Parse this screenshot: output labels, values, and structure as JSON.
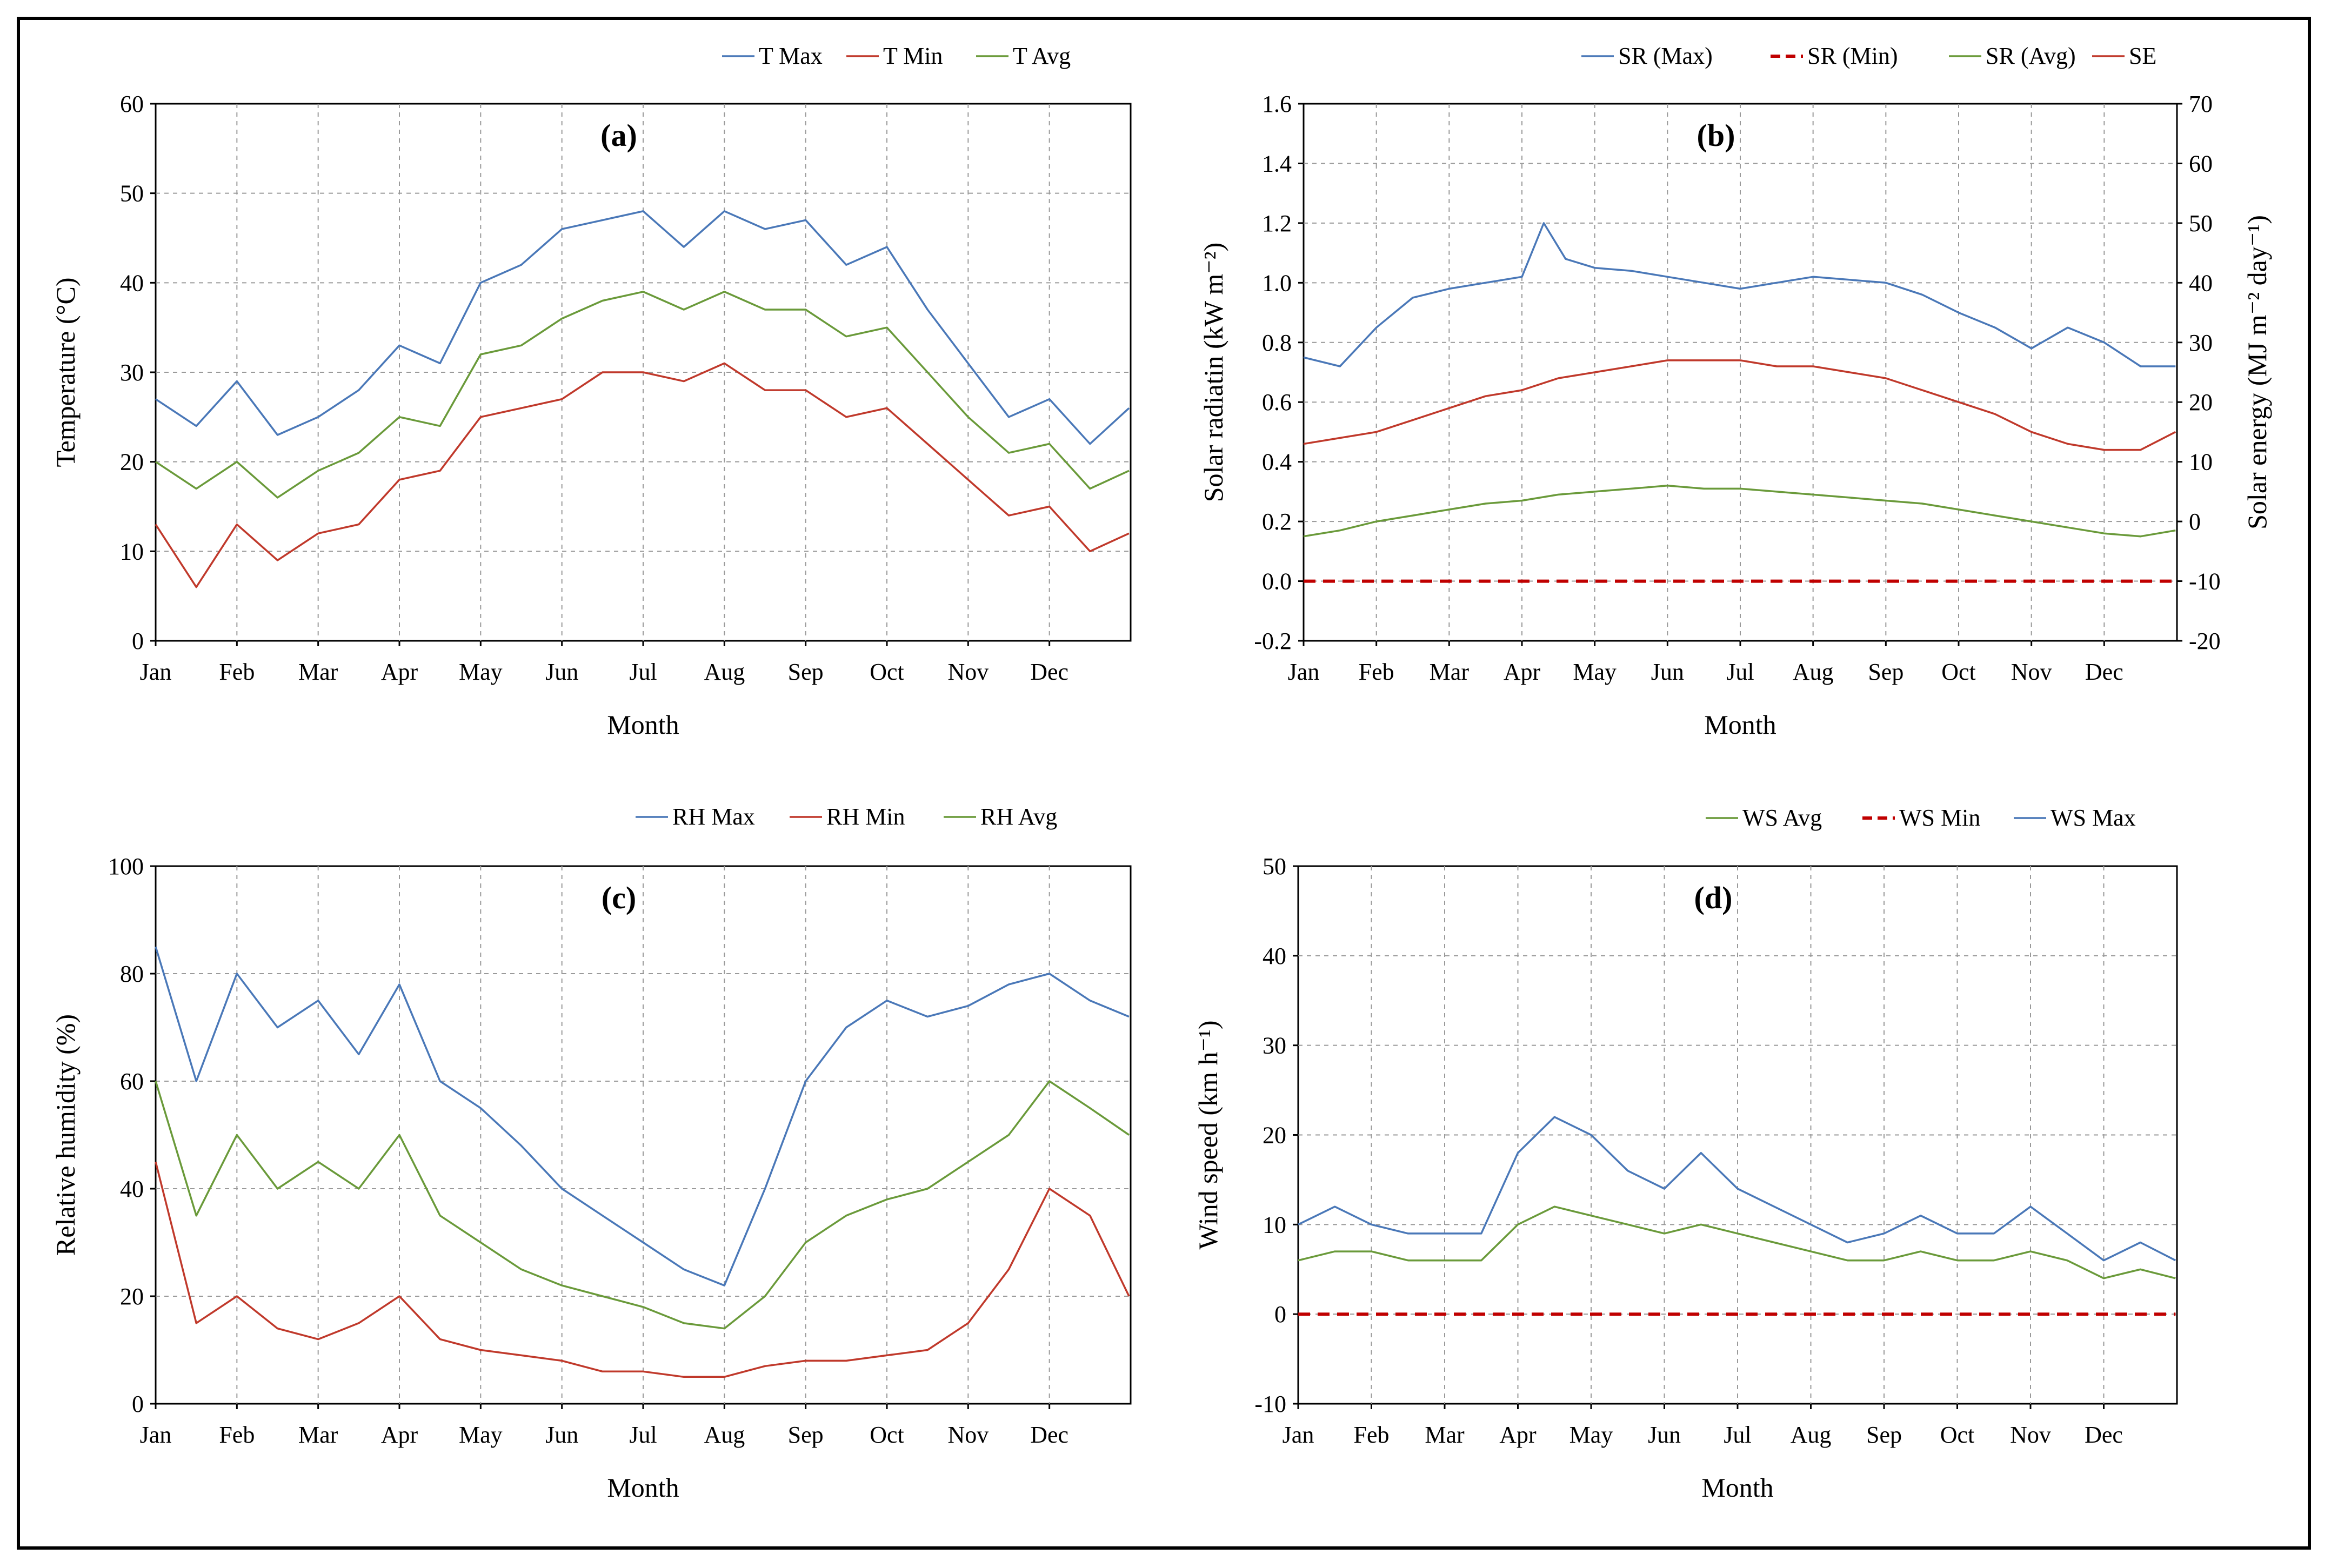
{
  "chart_data": [
    {
      "type": "line",
      "panel_label": "(a)",
      "xlabel": "Month",
      "ylabel": "Temperature (°C)",
      "ylim": [
        0,
        60
      ],
      "yticks": [
        0,
        10,
        20,
        30,
        40,
        50,
        60
      ],
      "categories": [
        "Jan",
        "Feb",
        "Mar",
        "Apr",
        "May",
        "Jun",
        "Jul",
        "Aug",
        "Sep",
        "Oct",
        "Nov",
        "Dec"
      ],
      "grid": true,
      "legend_position": "top-right",
      "series": [
        {
          "name": "T Max",
          "color": "#4a78b8",
          "dash": "solid",
          "x": [
            0,
            0.5,
            1,
            1.5,
            2,
            2.5,
            3,
            3.5,
            4,
            4.5,
            5,
            5.5,
            6,
            6.5,
            7,
            7.5,
            8,
            8.5,
            9,
            9.5,
            10,
            10.5,
            11,
            11.5,
            11.98
          ],
          "y": [
            27,
            24,
            29,
            23,
            25,
            28,
            33,
            31,
            40,
            42,
            46,
            47,
            48,
            44,
            48,
            46,
            47,
            42,
            44,
            37,
            31,
            25,
            27,
            22,
            26
          ]
        },
        {
          "name": "T Min",
          "color": "#c0392b",
          "dash": "solid",
          "x": [
            0,
            0.5,
            1,
            1.5,
            2,
            2.5,
            3,
            3.5,
            4,
            4.5,
            5,
            5.5,
            6,
            6.5,
            7,
            7.5,
            8,
            8.5,
            9,
            9.5,
            10,
            10.5,
            11,
            11.5,
            11.98
          ],
          "y": [
            13,
            6,
            13,
            9,
            12,
            13,
            18,
            19,
            25,
            26,
            27,
            30,
            30,
            29,
            31,
            28,
            28,
            25,
            26,
            22,
            18,
            14,
            15,
            10,
            12
          ]
        },
        {
          "name": "T Avg",
          "color": "#6a9a3a",
          "dash": "solid",
          "x": [
            0,
            0.5,
            1,
            1.5,
            2,
            2.5,
            3,
            3.5,
            4,
            4.5,
            5,
            5.5,
            6,
            6.5,
            7,
            7.5,
            8,
            8.5,
            9,
            9.5,
            10,
            10.5,
            11,
            11.5,
            11.98
          ],
          "y": [
            20,
            17,
            20,
            16,
            19,
            21,
            25,
            24,
            32,
            33,
            36,
            38,
            39,
            37,
            39,
            37,
            37,
            34,
            35,
            30,
            25,
            21,
            22,
            17,
            19
          ]
        }
      ]
    },
    {
      "type": "line",
      "panel_label": "(b)",
      "xlabel": "Month",
      "ylabel": "Solar radiatin (kW m⁻²)",
      "ylabel_right": "Solar energy (MJ m⁻² day⁻¹)",
      "ylim": [
        -0.2,
        1.6
      ],
      "ylim_right": [
        -20,
        70
      ],
      "yticks": [
        "-0.2",
        "0.0",
        "0.2",
        "0.4",
        "0.6",
        "0.8",
        "1.0",
        "1.2",
        "1.4",
        "1.6"
      ],
      "yticks_right": [
        -20,
        -10,
        0,
        10,
        20,
        30,
        40,
        50,
        60,
        70
      ],
      "categories": [
        "Jan",
        "Feb",
        "Mar",
        "Apr",
        "May",
        "Jun",
        "Jul",
        "Aug",
        "Sep",
        "Oct",
        "Nov",
        "Dec"
      ],
      "grid": true,
      "legend_position": "top-right",
      "series": [
        {
          "name": "SR (Max)",
          "color": "#4a78b8",
          "dash": "solid",
          "axis": "left",
          "x": [
            0,
            0.5,
            1,
            1.5,
            2,
            2.5,
            3,
            3.3,
            3.6,
            4,
            4.5,
            5,
            5.5,
            6,
            6.5,
            7,
            7.5,
            8,
            8.5,
            9,
            9.5,
            10,
            10.5,
            11,
            11.5,
            11.98
          ],
          "y": [
            0.75,
            0.72,
            0.85,
            0.95,
            0.98,
            1.0,
            1.02,
            1.2,
            1.08,
            1.05,
            1.04,
            1.02,
            1.0,
            0.98,
            1.0,
            1.02,
            1.01,
            1.0,
            0.96,
            0.9,
            0.85,
            0.78,
            0.85,
            0.8,
            0.72,
            0.72
          ]
        },
        {
          "name": "SR (Min)",
          "color": "#c00000",
          "dash": "dashed",
          "axis": "left",
          "x": [
            0,
            11.98
          ],
          "y": [
            0.0,
            0.0
          ]
        },
        {
          "name": "SR (Avg)",
          "color": "#6a9a3a",
          "dash": "solid",
          "axis": "left",
          "x": [
            0,
            0.5,
            1,
            1.5,
            2,
            2.5,
            3,
            3.5,
            4,
            4.5,
            5,
            5.5,
            6,
            6.5,
            7,
            7.5,
            8,
            8.5,
            9,
            9.5,
            10,
            10.5,
            11,
            11.5,
            11.98
          ],
          "y": [
            0.15,
            0.17,
            0.2,
            0.22,
            0.24,
            0.26,
            0.27,
            0.29,
            0.3,
            0.31,
            0.32,
            0.31,
            0.31,
            0.3,
            0.29,
            0.28,
            0.27,
            0.26,
            0.24,
            0.22,
            0.2,
            0.18,
            0.16,
            0.15,
            0.17
          ]
        },
        {
          "name": "SE",
          "color": "#c0392b",
          "dash": "solid",
          "axis": "right",
          "x": [
            0,
            0.5,
            1,
            1.5,
            2,
            2.5,
            3,
            3.5,
            4,
            4.5,
            5,
            5.5,
            6,
            6.5,
            7,
            7.5,
            8,
            8.5,
            9,
            9.5,
            10,
            10.5,
            11,
            11.5,
            11.98
          ],
          "y": [
            13,
            14,
            15,
            17,
            19,
            21,
            22,
            24,
            25,
            26,
            27,
            27,
            27,
            26,
            26,
            25,
            24,
            22,
            20,
            18,
            15,
            13,
            12,
            12,
            15
          ]
        }
      ]
    },
    {
      "type": "line",
      "panel_label": "(c)",
      "xlabel": "Month",
      "ylabel": "Relative humidity (%)",
      "ylim": [
        0,
        100
      ],
      "yticks": [
        0,
        20,
        40,
        60,
        80,
        100
      ],
      "categories": [
        "Jan",
        "Feb",
        "Mar",
        "Apr",
        "May",
        "Jun",
        "Jul",
        "Aug",
        "Sep",
        "Oct",
        "Nov",
        "Dec"
      ],
      "grid": true,
      "legend_position": "top-right",
      "series": [
        {
          "name": "RH Max",
          "color": "#4a78b8",
          "dash": "solid",
          "x": [
            0,
            0.5,
            1,
            1.5,
            2,
            2.5,
            3,
            3.5,
            4,
            4.5,
            5,
            5.5,
            6,
            6.5,
            7,
            7.5,
            8,
            8.5,
            9,
            9.5,
            10,
            10.5,
            11,
            11.5,
            11.98
          ],
          "y": [
            85,
            60,
            80,
            70,
            75,
            65,
            78,
            60,
            55,
            48,
            40,
            35,
            30,
            25,
            22,
            40,
            60,
            70,
            75,
            72,
            74,
            78,
            80,
            75,
            72
          ]
        },
        {
          "name": "RH Min",
          "color": "#c0392b",
          "dash": "solid",
          "x": [
            0,
            0.5,
            1,
            1.5,
            2,
            2.5,
            3,
            3.5,
            4,
            4.5,
            5,
            5.5,
            6,
            6.5,
            7,
            7.5,
            8,
            8.5,
            9,
            9.5,
            10,
            10.5,
            11,
            11.5,
            11.98
          ],
          "y": [
            45,
            15,
            20,
            14,
            12,
            15,
            20,
            12,
            10,
            9,
            8,
            6,
            6,
            5,
            5,
            7,
            8,
            8,
            9,
            10,
            15,
            25,
            40,
            35,
            20
          ]
        },
        {
          "name": "RH Avg",
          "color": "#6a9a3a",
          "dash": "solid",
          "x": [
            0,
            0.5,
            1,
            1.5,
            2,
            2.5,
            3,
            3.5,
            4,
            4.5,
            5,
            5.5,
            6,
            6.5,
            7,
            7.5,
            8,
            8.5,
            9,
            9.5,
            10,
            10.5,
            11,
            11.5,
            11.98
          ],
          "y": [
            60,
            35,
            50,
            40,
            45,
            40,
            50,
            35,
            30,
            25,
            22,
            20,
            18,
            15,
            14,
            20,
            30,
            35,
            38,
            40,
            45,
            50,
            60,
            55,
            50
          ]
        }
      ]
    },
    {
      "type": "line",
      "panel_label": "(d)",
      "xlabel": "Month",
      "ylabel": "Wind speed (km h⁻¹)",
      "ylim": [
        -10,
        50
      ],
      "yticks": [
        -10,
        0,
        10,
        20,
        30,
        40,
        50
      ],
      "categories": [
        "Jan",
        "Feb",
        "Mar",
        "Apr",
        "May",
        "Jun",
        "Jul",
        "Aug",
        "Sep",
        "Oct",
        "Nov",
        "Dec"
      ],
      "grid": true,
      "legend_position": "top-right",
      "series": [
        {
          "name": "WS Avg",
          "color": "#6a9a3a",
          "dash": "solid",
          "x": [
            0,
            0.5,
            1,
            1.5,
            2,
            2.5,
            3,
            3.5,
            4,
            4.5,
            5,
            5.5,
            6,
            6.5,
            7,
            7.5,
            8,
            8.5,
            9,
            9.5,
            10,
            10.5,
            11,
            11.5,
            11.98
          ],
          "y": [
            6,
            7,
            7,
            6,
            6,
            6,
            10,
            12,
            11,
            10,
            9,
            10,
            9,
            8,
            7,
            6,
            6,
            7,
            6,
            6,
            7,
            6,
            4,
            5,
            4
          ]
        },
        {
          "name": "WS Min",
          "color": "#c00000",
          "dash": "dashed",
          "x": [
            0,
            11.98
          ],
          "y": [
            0,
            0
          ]
        },
        {
          "name": "WS Max",
          "color": "#4a78b8",
          "dash": "solid",
          "x": [
            0,
            0.5,
            1,
            1.5,
            2,
            2.5,
            3,
            3.5,
            4,
            4.5,
            5,
            5.5,
            6,
            6.5,
            7,
            7.5,
            8,
            8.5,
            9,
            9.5,
            10,
            10.5,
            11,
            11.5,
            11.98
          ],
          "y": [
            10,
            12,
            10,
            9,
            9,
            9,
            18,
            22,
            20,
            16,
            14,
            18,
            14,
            12,
            10,
            8,
            9,
            11,
            9,
            9,
            12,
            9,
            6,
            8,
            6
          ]
        }
      ]
    }
  ]
}
